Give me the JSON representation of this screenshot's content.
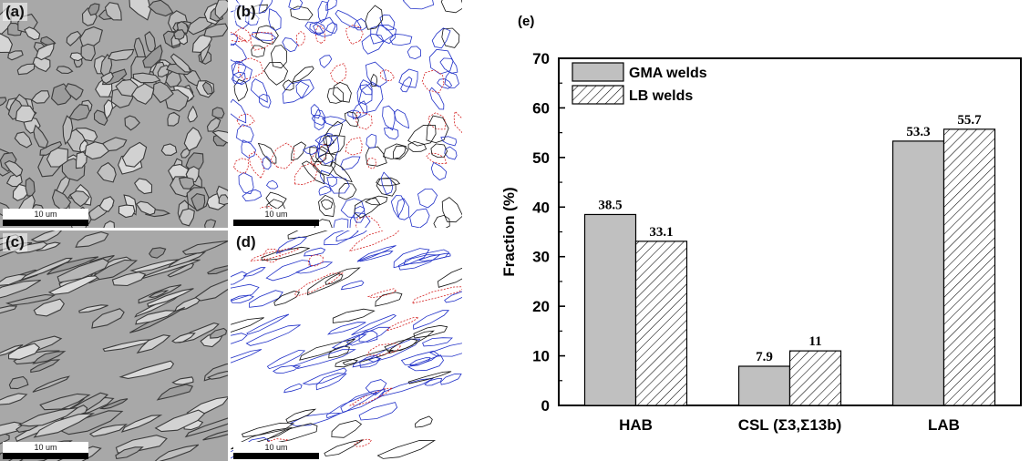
{
  "micrographs": [
    {
      "letter": "(a)",
      "scale": "10 um",
      "kind": "gray"
    },
    {
      "letter": "(b)",
      "scale": "10 um",
      "kind": "map"
    },
    {
      "letter": "(c)",
      "scale": "10 um",
      "kind": "gray"
    },
    {
      "letter": "(d)",
      "scale": "10 um",
      "kind": "map"
    }
  ],
  "colors": {
    "gma_fill": "#c0c0c0",
    "lb_fill": "#ffffff",
    "hatch": "#000000",
    "map_red": "#d42020",
    "map_blue": "#2030c8",
    "map_black": "#111111"
  },
  "chart_data": {
    "type": "bar",
    "panel_label": "(e)",
    "categories": [
      "HAB",
      "CSL (Σ3,Σ13b)",
      "LAB"
    ],
    "series": [
      {
        "name": "GMA welds",
        "values": [
          38.5,
          7.9,
          53.3
        ],
        "labels": [
          "38.5",
          "7.9",
          "53.3"
        ],
        "pattern": "solid"
      },
      {
        "name": "LB welds",
        "values": [
          33.1,
          11,
          55.7
        ],
        "labels": [
          "33.1",
          "11",
          "55.7"
        ],
        "pattern": "hatched"
      }
    ],
    "xlabel": "",
    "ylabel": "Fraction (%)",
    "ylim": [
      0,
      70
    ],
    "yticks": [
      0,
      10,
      20,
      30,
      40,
      50,
      60,
      70
    ],
    "legend": "top-left",
    "grid": false
  }
}
